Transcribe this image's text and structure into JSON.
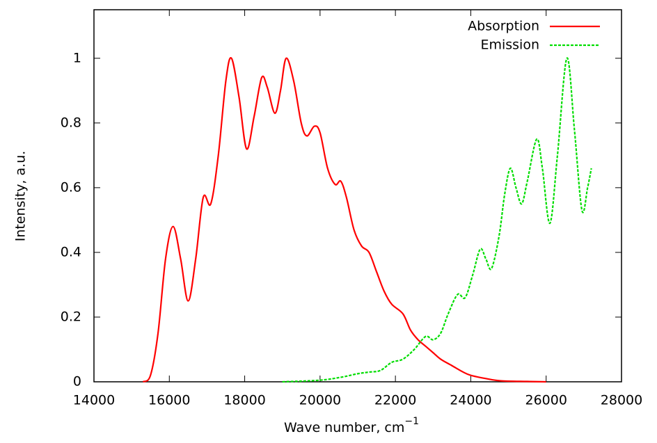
{
  "chart_data": {
    "type": "line",
    "xlabel": "Wave number, cm",
    "xlabel_sup": "−1",
    "ylabel": "Intensity, a.u.",
    "xlim": [
      14000,
      28000
    ],
    "xticks": [
      14000,
      16000,
      18000,
      20000,
      22000,
      24000,
      26000,
      28000
    ],
    "ylim": [
      0,
      1.15
    ],
    "yticks": [
      0,
      0.2,
      0.4,
      0.6,
      0.8,
      1
    ],
    "legend": "top-right",
    "series": [
      {
        "name": "Absorption",
        "color": "#ff0000",
        "dash": false,
        "x": [
          15300,
          15500,
          15700,
          15900,
          16100,
          16300,
          16500,
          16700,
          16900,
          17100,
          17300,
          17500,
          17650,
          17850,
          18050,
          18250,
          18450,
          18600,
          18800,
          18950,
          19100,
          19300,
          19500,
          19650,
          19850,
          20000,
          20200,
          20400,
          20550,
          20700,
          20900,
          21100,
          21300,
          21500,
          21700,
          21900,
          22200,
          22400,
          22600,
          22800,
          23000,
          23200,
          23500,
          23800,
          24000,
          24400,
          24800,
          25500,
          26000
        ],
        "values": [
          0,
          0.02,
          0.15,
          0.38,
          0.48,
          0.38,
          0.25,
          0.38,
          0.57,
          0.55,
          0.7,
          0.93,
          1.0,
          0.88,
          0.72,
          0.82,
          0.94,
          0.91,
          0.83,
          0.9,
          1.0,
          0.93,
          0.8,
          0.76,
          0.79,
          0.77,
          0.66,
          0.61,
          0.62,
          0.57,
          0.47,
          0.42,
          0.4,
          0.34,
          0.28,
          0.24,
          0.21,
          0.16,
          0.13,
          0.11,
          0.09,
          0.07,
          0.05,
          0.03,
          0.02,
          0.01,
          0.003,
          0.001,
          0
        ]
      },
      {
        "name": "Emission",
        "color": "#00dd00",
        "dash": true,
        "x": [
          19000,
          20000,
          20600,
          21000,
          21300,
          21600,
          21900,
          22200,
          22500,
          22800,
          23000,
          23200,
          23400,
          23650,
          23850,
          24050,
          24250,
          24400,
          24550,
          24750,
          24900,
          25050,
          25200,
          25350,
          25500,
          25750,
          25900,
          26100,
          26300,
          26550,
          26750,
          26950,
          27100,
          27200
        ],
        "values": [
          0,
          0.005,
          0.015,
          0.025,
          0.03,
          0.035,
          0.06,
          0.07,
          0.1,
          0.14,
          0.13,
          0.15,
          0.21,
          0.27,
          0.26,
          0.33,
          0.41,
          0.38,
          0.35,
          0.45,
          0.58,
          0.66,
          0.6,
          0.55,
          0.62,
          0.75,
          0.66,
          0.49,
          0.7,
          1.0,
          0.78,
          0.53,
          0.6,
          0.66
        ]
      }
    ]
  }
}
